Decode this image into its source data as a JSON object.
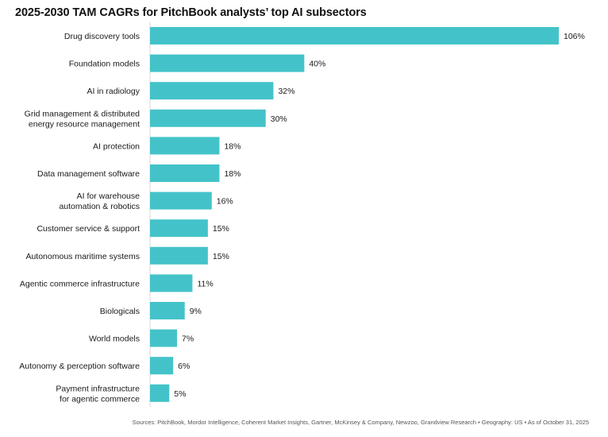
{
  "chart_data": {
    "type": "bar",
    "orientation": "horizontal",
    "title": "2025-2030 TAM CAGRs for PitchBook analysts’ top AI subsectors",
    "categories": [
      [
        "Drug discovery tools"
      ],
      [
        "Foundation models"
      ],
      [
        "AI in radiology"
      ],
      [
        "Grid management & distributed",
        "energy resource management"
      ],
      [
        "AI protection"
      ],
      [
        "Data management software"
      ],
      [
        "AI for warehouse",
        "automation & robotics"
      ],
      [
        "Customer service & support"
      ],
      [
        "Autonomous maritime systems"
      ],
      [
        "Agentic commerce infrastructure"
      ],
      [
        "Biologicals"
      ],
      [
        "World models"
      ],
      [
        "Autonomy & perception software"
      ],
      [
        "Payment infrastructure",
        "for agentic commerce"
      ]
    ],
    "values": [
      106,
      40,
      32,
      30,
      18,
      18,
      16,
      15,
      15,
      11,
      9,
      7,
      6,
      5
    ],
    "value_labels": [
      "106%",
      "40%",
      "32%",
      "30%",
      "18%",
      "18%",
      "16%",
      "15%",
      "15%",
      "11%",
      "9%",
      "7%",
      "6%",
      "5%"
    ],
    "xlim": [
      0,
      106
    ],
    "bar_color": "#43C3C9",
    "grid": false,
    "legend": "none",
    "footnote": "Sources: PitchBook, Mordor Intelligence, Coherent Market Insights, Gartner, McKinsey & Company, Newzoo, Grandview Research • Geography: US • As of October 31, 2025"
  }
}
